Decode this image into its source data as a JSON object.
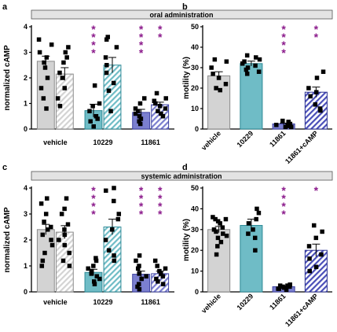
{
  "colors": {
    "vehicle": "#d3d3d3",
    "c10229": "#6fbcc6",
    "c11861": "#7b7fcf",
    "rescue": "#4a4fb8",
    "sig": "#8b1a8b",
    "banner": "#e3e3e3"
  },
  "banners": [
    "oral administration",
    "systemic administration"
  ],
  "chart_data": [
    {
      "panel": "a",
      "type": "bar",
      "ylabel": "normalized cAMP",
      "ylim": [
        0,
        4
      ],
      "yticks": [
        "0",
        "1",
        "2",
        "3",
        "4"
      ],
      "groups": [
        "vehicle",
        "10229",
        "11861"
      ],
      "bars": [
        {
          "group": 0,
          "hatched": false,
          "color": "vehicle",
          "value": 2.65,
          "sem": 0.2,
          "points": [
            3.5,
            3.3,
            3.0,
            2.8,
            2.6,
            2.4,
            2.0,
            1.6,
            1.2,
            0.8
          ]
        },
        {
          "group": 0,
          "hatched": true,
          "color": "vehicle",
          "value": 2.15,
          "sem": 0.25,
          "points": [
            3.2,
            3.0,
            2.8,
            2.6,
            2.2,
            2.0,
            1.6,
            1.2,
            0.9
          ]
        },
        {
          "group": 1,
          "hatched": false,
          "color": "c10229",
          "value": 0.72,
          "sem": 0.25,
          "points": [
            1.7,
            1.0,
            0.9,
            0.7,
            0.5,
            0.4,
            0.3,
            0.1
          ]
        },
        {
          "group": 1,
          "hatched": true,
          "color": "c10229",
          "value": 2.5,
          "sem": 0.3,
          "points": [
            3.6,
            3.5,
            3.2,
            2.8,
            2.5,
            2.2,
            1.8,
            1.5,
            0.7
          ]
        },
        {
          "group": 2,
          "hatched": false,
          "color": "c11861",
          "value": 0.65,
          "sem": 0.12,
          "points": [
            1.2,
            1.0,
            0.8,
            0.7,
            0.6,
            0.5,
            0.4,
            0.3,
            0.2
          ]
        },
        {
          "group": 2,
          "hatched": true,
          "color": "c11861",
          "value": 0.95,
          "sem": 0.1,
          "points": [
            1.4,
            1.2,
            1.1,
            1.0,
            0.9,
            0.8,
            0.7,
            0.6,
            0.5
          ]
        }
      ],
      "sig": [
        {
          "bar": 2,
          "text": "****"
        },
        {
          "bar": 4,
          "text": "****"
        },
        {
          "bar": 5,
          "text": "**"
        }
      ]
    },
    {
      "panel": "b",
      "type": "bar",
      "ylabel": "motility (%)",
      "ylim": [
        0,
        50
      ],
      "yticks": [
        "0",
        "10",
        "20",
        "30",
        "40",
        "50"
      ],
      "categories": [
        "vehicle",
        "10229",
        "11861",
        "11861+cAMP"
      ],
      "bars": [
        {
          "hatched": false,
          "color": "vehicle",
          "value": 26,
          "sem": 2,
          "points": [
            34,
            33,
            30,
            27,
            25,
            22,
            20,
            19
          ]
        },
        {
          "hatched": false,
          "color": "c10229",
          "value": 32,
          "sem": 1.2,
          "points": [
            36,
            35,
            34,
            33,
            32,
            31,
            30,
            29,
            28,
            27
          ]
        },
        {
          "hatched": false,
          "color": "c11861",
          "value": 2.5,
          "sem": 0.4,
          "points": [
            4,
            3.5,
            3,
            2.5,
            2,
            2,
            1.5,
            1,
            1
          ]
        },
        {
          "hatched": true,
          "color": "rescue",
          "value": 18,
          "sem": 2.5,
          "points": [
            28,
            25,
            20,
            18,
            16,
            12,
            10,
            9
          ]
        }
      ],
      "sig": [
        {
          "bar": 2,
          "text": "****"
        },
        {
          "bar": 3,
          "text": "**"
        }
      ]
    },
    {
      "panel": "c",
      "type": "bar",
      "ylabel": "normalized cAMP",
      "ylim": [
        0,
        4
      ],
      "yticks": [
        "0",
        "1",
        "2",
        "3",
        "4"
      ],
      "groups": [
        "vehicle",
        "10229",
        "11861"
      ],
      "bars": [
        {
          "group": 0,
          "hatched": false,
          "color": "vehicle",
          "value": 2.4,
          "sem": 0.2,
          "points": [
            3.6,
            3.4,
            3.0,
            2.7,
            2.5,
            2.4,
            2.2,
            2.0,
            1.8,
            1.5,
            1.2,
            1.0
          ]
        },
        {
          "group": 0,
          "hatched": true,
          "color": "vehicle",
          "value": 2.3,
          "sem": 0.25,
          "points": [
            3.6,
            3.2,
            3.0,
            2.6,
            2.4,
            2.2,
            2.0,
            1.8,
            1.5,
            1.2,
            1.0
          ]
        },
        {
          "group": 1,
          "hatched": false,
          "color": "c10229",
          "value": 0.75,
          "sem": 0.12,
          "points": [
            1.3,
            1.2,
            1.0,
            0.9,
            0.8,
            0.7,
            0.6,
            0.5,
            0.4,
            0.3
          ]
        },
        {
          "group": 1,
          "hatched": true,
          "color": "c10229",
          "value": 2.5,
          "sem": 0.3,
          "points": [
            4.0,
            3.9,
            3.5,
            3.0,
            2.8,
            2.4,
            2.0,
            1.6,
            1.4,
            1.2
          ]
        },
        {
          "group": 2,
          "hatched": false,
          "color": "c11861",
          "value": 0.68,
          "sem": 0.12,
          "points": [
            1.4,
            1.2,
            1.0,
            0.9,
            0.7,
            0.6,
            0.5,
            0.3,
            0.2,
            0.1
          ]
        },
        {
          "group": 2,
          "hatched": true,
          "color": "c11861",
          "value": 0.7,
          "sem": 0.1,
          "points": [
            1.2,
            1.0,
            0.9,
            0.8,
            0.7,
            0.6,
            0.5,
            0.4,
            0.3
          ]
        }
      ],
      "sig": [
        {
          "bar": 2,
          "text": "****"
        },
        {
          "bar": 4,
          "text": "****"
        },
        {
          "bar": 5,
          "text": "****"
        }
      ]
    },
    {
      "panel": "d",
      "type": "bar",
      "ylabel": "motility (%)",
      "ylim": [
        0,
        50
      ],
      "yticks": [
        "0",
        "10",
        "20",
        "30",
        "40",
        "50"
      ],
      "categories": [
        "vehicle",
        "10229",
        "11861",
        "11861+cAMP"
      ],
      "bars": [
        {
          "hatched": false,
          "color": "vehicle",
          "value": 30,
          "sem": 1.5,
          "points": [
            36,
            35,
            35,
            34,
            33,
            31,
            30,
            29,
            28,
            27,
            26,
            24,
            22,
            18
          ]
        },
        {
          "hatched": false,
          "color": "c10229",
          "value": 32,
          "sem": 3,
          "points": [
            40,
            38,
            35,
            33,
            30,
            28,
            26,
            20
          ]
        },
        {
          "hatched": false,
          "color": "c11861",
          "value": 2.5,
          "sem": 0.3,
          "points": [
            3.5,
            3,
            3,
            2.5,
            2.5,
            2,
            2,
            1.5,
            1.5,
            1
          ]
        },
        {
          "hatched": true,
          "color": "rescue",
          "value": 20,
          "sem": 3,
          "points": [
            32,
            29,
            26,
            22,
            18,
            16,
            12,
            10
          ]
        }
      ],
      "sig": [
        {
          "bar": 2,
          "text": "****"
        },
        {
          "bar": 3,
          "text": "*"
        }
      ]
    }
  ]
}
